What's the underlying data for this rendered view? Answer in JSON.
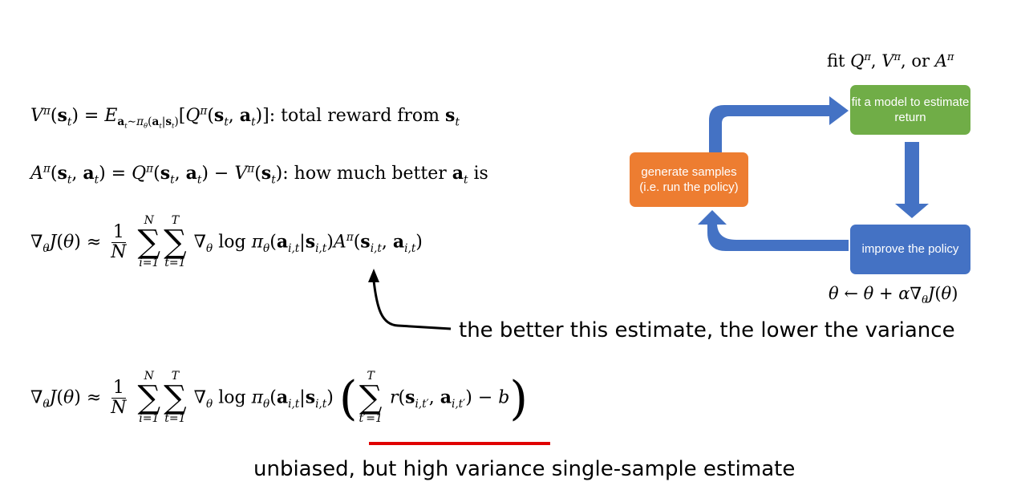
{
  "equations": {
    "value_fn_suffix": "total reward from",
    "advantage_suffix": "how much better",
    "advantage_suffix_tail": "is"
  },
  "diagram": {
    "top_label": "fit Q^π, V^π, or A^π",
    "bottom_label": "θ ← θ + α∇θJ(θ)",
    "box_fit": "fit a model to estimate return",
    "box_generate": "generate samples (i.e. run the policy)",
    "box_improve": "improve the policy",
    "colors": {
      "fit": "#70ad47",
      "generate": "#ed7d31",
      "improve": "#4472c4",
      "arrow": "#4472c4"
    }
  },
  "annotations": {
    "better_estimate": "the better this estimate, the lower the variance",
    "unbiased": "unbiased, but high variance single-sample estimate",
    "underline_color": "#e00000"
  }
}
